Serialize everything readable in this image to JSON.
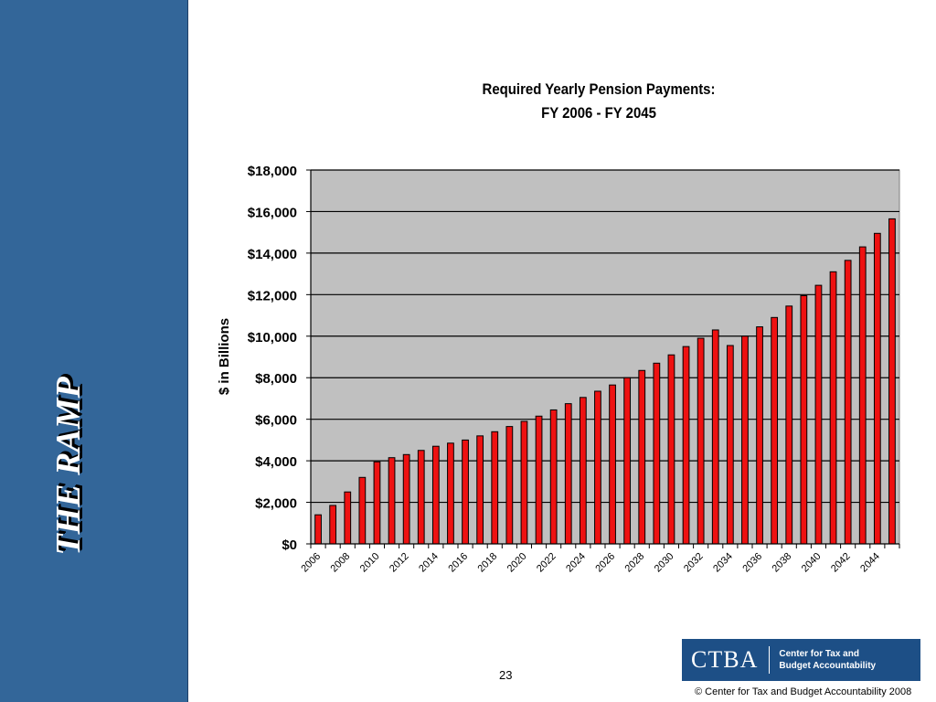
{
  "side_panel": {
    "title": "THE RAMP"
  },
  "footer": {
    "page_number": "23",
    "logo_acronym": "CTBA",
    "logo_name_line1": "Center for Tax and",
    "logo_name_line2": "Budget Accountability",
    "copyright": "©  Center for Tax and Budget Accountability 2008"
  },
  "colors": {
    "panel": "#336699",
    "bar": "#ee1111",
    "plot_bg": "#c0c0c0",
    "logo_bg": "#1d4f86"
  },
  "chart_data": {
    "type": "bar",
    "title": "Required Yearly Pension Payments:",
    "subtitle": "FY 2006 - FY 2045",
    "xlabel": "",
    "ylabel": "$ in Billions",
    "ylim": [
      0,
      18000
    ],
    "yticks": [
      "$0",
      "$2,000",
      "$4,000",
      "$6,000",
      "$8,000",
      "$10,000",
      "$12,000",
      "$14,000",
      "$16,000",
      "$18,000"
    ],
    "grid": true,
    "categories": [
      "2006",
      "2007",
      "2008",
      "2009",
      "2010",
      "2011",
      "2012",
      "2013",
      "2014",
      "2015",
      "2016",
      "2017",
      "2018",
      "2019",
      "2020",
      "2021",
      "2022",
      "2023",
      "2024",
      "2025",
      "2026",
      "2027",
      "2028",
      "2029",
      "2030",
      "2031",
      "2032",
      "2033",
      "2034",
      "2035",
      "2036",
      "2037",
      "2038",
      "2039",
      "2040",
      "2041",
      "2042",
      "2043",
      "2044",
      "2045"
    ],
    "xtick_labels": [
      "2006",
      "2008",
      "2010",
      "2012",
      "2014",
      "2016",
      "2018",
      "2020",
      "2022",
      "2024",
      "2026",
      "2028",
      "2030",
      "2032",
      "2034",
      "2036",
      "2038",
      "2040",
      "2042",
      "2044"
    ],
    "values": [
      1400,
      1850,
      2500,
      3200,
      3950,
      4150,
      4300,
      4500,
      4700,
      4850,
      5000,
      5200,
      5400,
      5650,
      5900,
      6150,
      6450,
      6750,
      7050,
      7350,
      7650,
      8000,
      8350,
      8700,
      9100,
      9500,
      9900,
      10300,
      9550,
      10000,
      10450,
      10900,
      11450,
      11950,
      12450,
      13100,
      13650,
      14300,
      14950,
      15650
    ]
  }
}
